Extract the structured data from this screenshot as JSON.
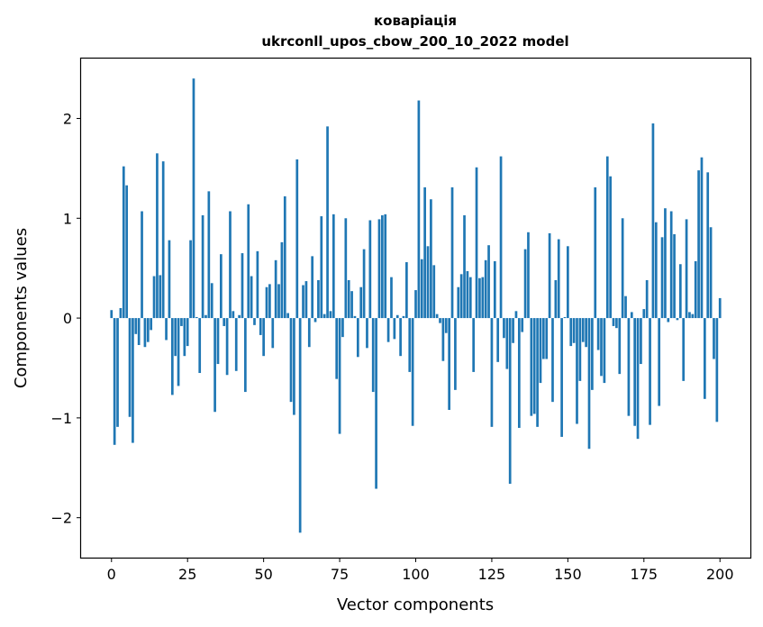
{
  "chart_data": {
    "type": "bar",
    "title": "коваріація",
    "subtitle": "ukrconll_upos_cbow_200_10_2022 model",
    "xlabel": "Vector components",
    "ylabel": "Components values",
    "xlim": [
      -10,
      210
    ],
    "ylim": [
      -2.4,
      2.6
    ],
    "xticks": [
      0,
      25,
      50,
      75,
      100,
      125,
      150,
      175,
      200
    ],
    "yticks": [
      -2,
      -1,
      0,
      1,
      2
    ],
    "ytick_labels": [
      "−2",
      "−1",
      "0",
      "1",
      "2"
    ],
    "bar_color": "#1f77b4",
    "grid": false,
    "values": [
      0.08,
      -1.27,
      -1.09,
      0.1,
      1.52,
      1.33,
      -0.99,
      -1.25,
      -0.16,
      -0.27,
      1.07,
      -0.29,
      -0.24,
      -0.12,
      0.42,
      1.65,
      0.43,
      1.57,
      -0.22,
      0.78,
      -0.77,
      -0.38,
      -0.68,
      -0.08,
      -0.38,
      -0.28,
      0.78,
      2.4,
      0.01,
      -0.55,
      1.03,
      0.03,
      1.27,
      0.35,
      -0.94,
      -0.46,
      0.64,
      -0.08,
      -0.57,
      1.07,
      0.07,
      -0.53,
      0.03,
      0.65,
      -0.74,
      1.14,
      0.42,
      -0.07,
      0.67,
      -0.17,
      -0.38,
      0.31,
      0.34,
      -0.3,
      0.58,
      0.34,
      0.76,
      1.22,
      0.05,
      -0.84,
      -0.97,
      1.59,
      -2.15,
      0.33,
      0.37,
      -0.29,
      0.62,
      -0.04,
      0.38,
      1.02,
      0.04,
      1.92,
      0.07,
      1.04,
      -0.61,
      -1.16,
      -0.19,
      1.0,
      0.38,
      0.27,
      0.02,
      -0.39,
      0.31,
      0.69,
      -0.3,
      0.98,
      -0.74,
      -1.71,
      0.99,
      1.03,
      1.04,
      -0.24,
      0.41,
      -0.21,
      0.03,
      -0.38,
      0.02,
      0.56,
      -0.54,
      -1.08,
      0.28,
      2.18,
      0.59,
      1.31,
      0.72,
      1.19,
      0.53,
      0.04,
      -0.05,
      -0.43,
      -0.15,
      -0.92,
      1.31,
      -0.72,
      0.31,
      0.44,
      1.03,
      0.47,
      0.41,
      -0.54,
      1.51,
      0.4,
      0.41,
      0.58,
      0.73,
      -1.09,
      0.57,
      -0.44,
      1.62,
      -0.2,
      -0.51,
      -1.66,
      -0.25,
      0.07,
      -1.1,
      -0.14,
      0.69,
      0.86,
      -0.98,
      -0.96,
      -1.09,
      -0.65,
      -0.41,
      -0.41,
      0.85,
      -0.84,
      0.38,
      0.79,
      -1.19,
      0.01,
      0.72,
      -0.28,
      -0.25,
      -1.06,
      -0.63,
      -0.24,
      -0.29,
      -1.31,
      -0.72,
      1.31,
      -0.32,
      -0.58,
      -0.65,
      1.62,
      1.42,
      -0.08,
      -0.1,
      -0.56,
      1.0,
      0.22,
      -0.98,
      0.06,
      -1.08,
      -1.21,
      -0.46,
      0.09,
      0.38,
      -1.07,
      1.95,
      0.96,
      -0.88,
      0.81,
      1.1,
      -0.04,
      1.07,
      0.84,
      -0.02,
      0.54,
      -0.63,
      0.99,
      0.06,
      0.04,
      0.57,
      1.48,
      1.61,
      -0.81,
      1.46,
      0.91,
      -0.41,
      -1.04,
      0.2
    ]
  }
}
